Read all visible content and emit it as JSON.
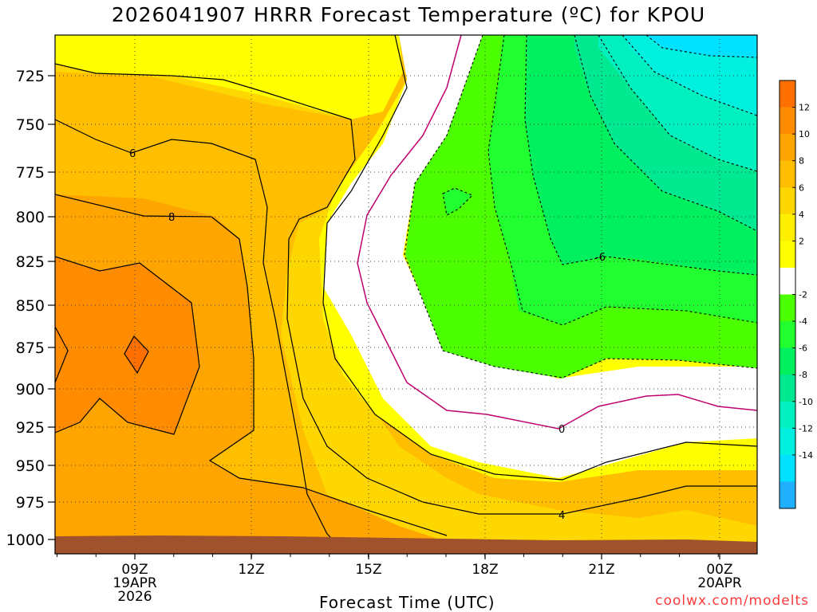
{
  "chart_data": {
    "type": "heatmap",
    "title": "2026041907 HRRR Forecast Temperature (ºC) for KPOU",
    "xlabel": "Forecast Time (UTC)",
    "ylabel": "",
    "x_ticks": [
      {
        "label": "09Z",
        "sub": [
          "19APR",
          "2026"
        ]
      },
      {
        "label": "12Z",
        "sub": []
      },
      {
        "label": "15Z",
        "sub": []
      },
      {
        "label": "18Z",
        "sub": []
      },
      {
        "label": "21Z",
        "sub": []
      },
      {
        "label": "00Z",
        "sub": [
          "20APR"
        ]
      }
    ],
    "y_ticks": [
      "725",
      "750",
      "775",
      "800",
      "825",
      "850",
      "875",
      "900",
      "925",
      "950",
      "975",
      "1000"
    ],
    "contour_labels": [
      "6",
      "8",
      "-6",
      "0",
      "4"
    ],
    "colorbar": {
      "labels": [
        "12",
        "10",
        "8",
        "6",
        "4",
        "2",
        "-2",
        "-4",
        "-6",
        "-8",
        "-10",
        "-12",
        "-14"
      ],
      "colors": [
        "#ff7000",
        "#ff8c00",
        "#ffa500",
        "#ffbf00",
        "#ffd700",
        "#ffef00",
        "#ffff00",
        "#ffffff",
        "#4cff00",
        "#22ff30",
        "#00f060",
        "#00e890",
        "#00f0c0",
        "#00f0e0",
        "#00e0ff",
        "#20b0ff"
      ]
    },
    "grid": true,
    "legend": "right"
  },
  "credit": "coolwx.com/modelts"
}
